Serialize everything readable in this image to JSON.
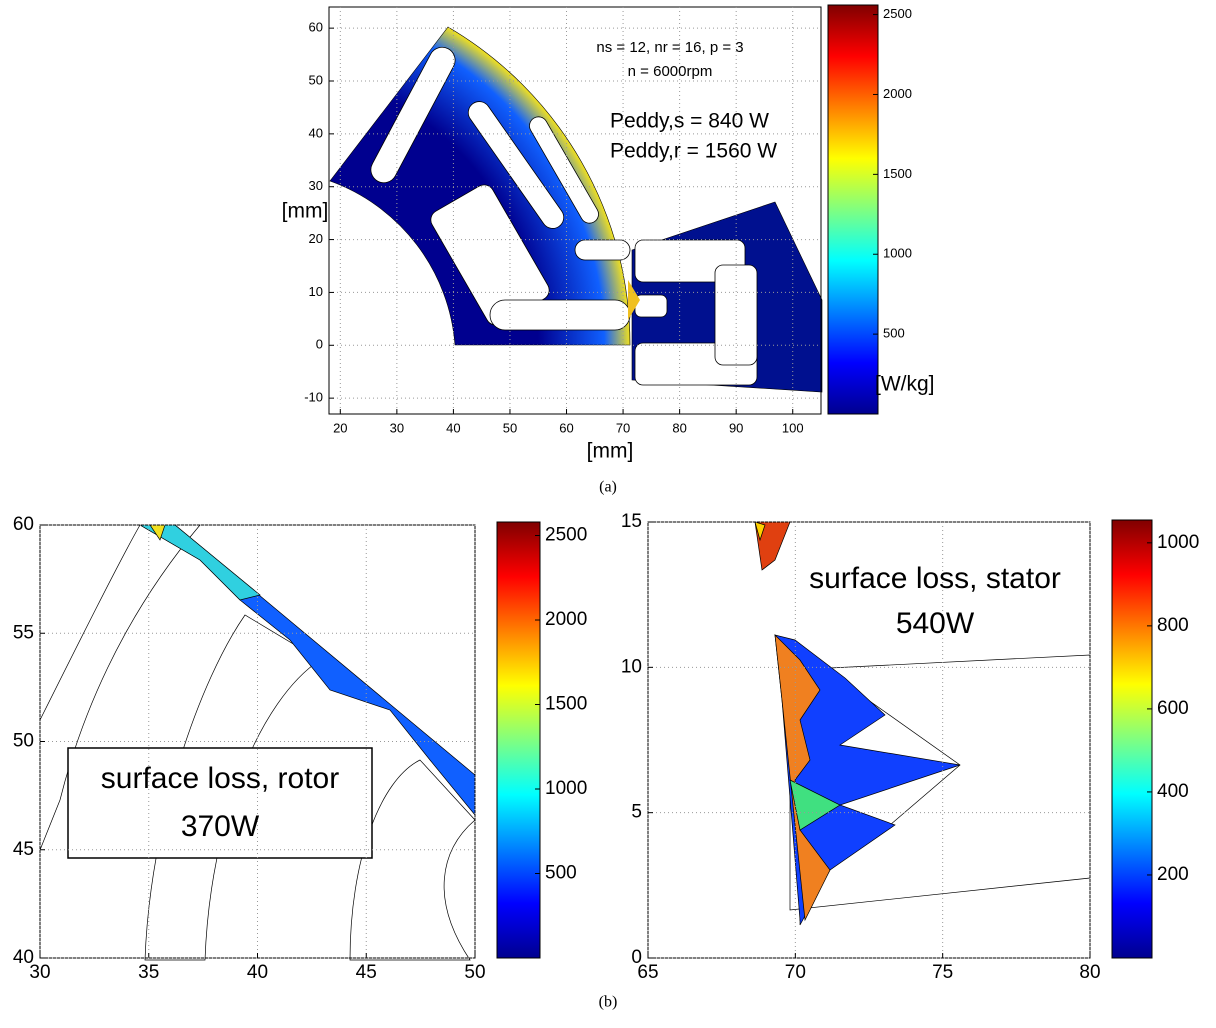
{
  "chart_data": [
    {
      "type": "mesh",
      "xlabel": "[mm]",
      "ylabel": "[mm]",
      "xlim": [
        18,
        105
      ],
      "ylim": [
        -13,
        64
      ],
      "xticks": [
        20,
        30,
        40,
        50,
        60,
        70,
        80,
        90,
        100
      ],
      "yticks": [
        -10,
        0,
        10,
        20,
        30,
        40,
        50,
        60
      ],
      "grid": true,
      "annotations": [
        "ns = 12, nr = 16, p = 3",
        "n = 6000rpm",
        "Peddy,s = 840 W",
        "Peddy,r = 1560 W"
      ],
      "colorbar": {
        "label": "[W/kg]",
        "lim": [
          0,
          2560
        ],
        "ticks": [
          500,
          1000,
          1500,
          2000,
          2500
        ]
      }
    },
    {
      "type": "mesh",
      "xlim": [
        30,
        50
      ],
      "ylim": [
        40,
        60
      ],
      "xticks": [
        30,
        35,
        40,
        45,
        50
      ],
      "yticks": [
        40,
        45,
        50,
        55,
        60
      ],
      "grid": true,
      "annotations": [
        "surface loss, rotor",
        "370W"
      ],
      "colorbar": {
        "lim": [
          0,
          2580
        ],
        "ticks": [
          500,
          1000,
          1500,
          2000,
          2500
        ]
      }
    },
    {
      "type": "mesh",
      "xlim": [
        65,
        80
      ],
      "ylim": [
        0,
        15
      ],
      "xticks": [
        65,
        70,
        75,
        80
      ],
      "yticks": [
        0,
        5,
        10,
        15
      ],
      "grid": true,
      "annotations": [
        "surface loss, stator",
        "540W"
      ],
      "colorbar": {
        "lim": [
          0,
          1055
        ],
        "ticks": [
          200,
          400,
          600,
          800,
          1000
        ]
      }
    }
  ],
  "figure": {
    "captions": [
      "(a)",
      "(b)"
    ]
  }
}
